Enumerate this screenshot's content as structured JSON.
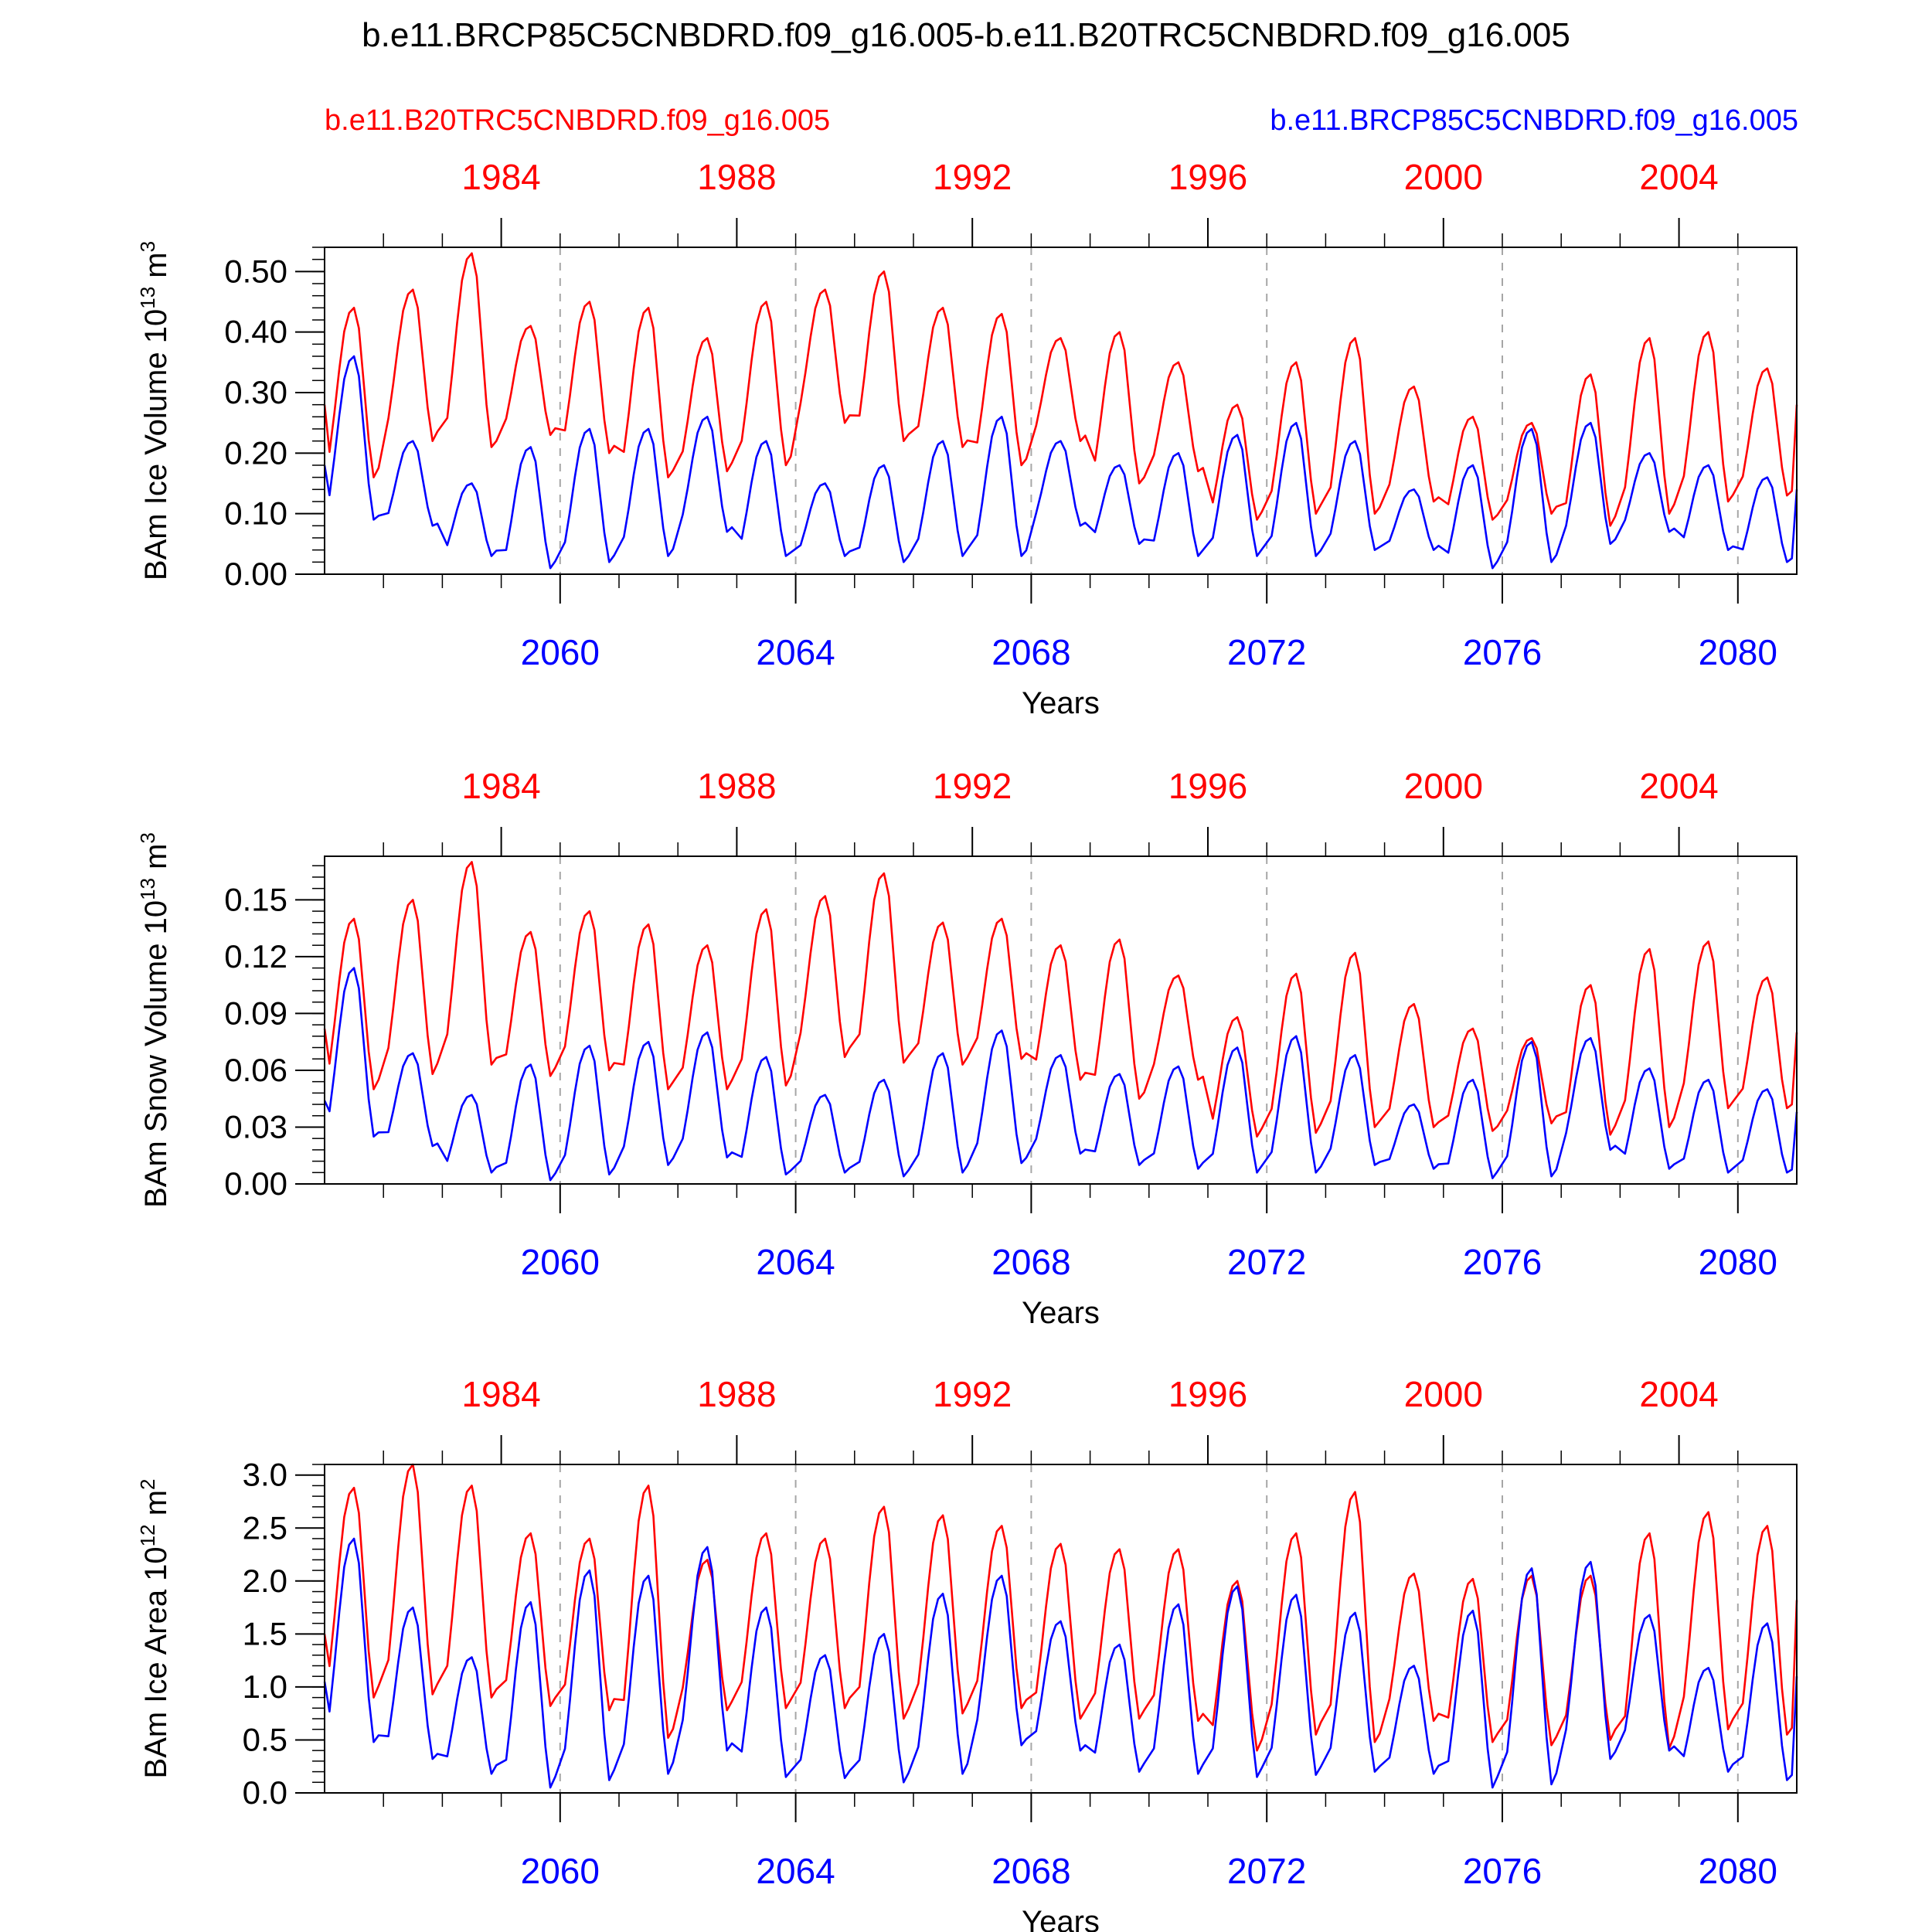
{
  "title": "b.e11.BRCP85C5CNBDRD.f09_g16.005-b.e11.B20TRC5CNBDRD.f09_g16.005",
  "legend": {
    "red_label": "b.e11.B20TRC5CNBDRD.f09_g16.005",
    "blue_label": "b.e11.BRCP85C5CNBDRD.f09_g16.005"
  },
  "colors": {
    "red": "#ff0000",
    "blue": "#0000ff",
    "grid": "#a6a6a6",
    "axis": "#000000"
  },
  "chart_data": [
    {
      "type": "line",
      "ylabel": "BAm Ice Volume 10",
      "ylabel_exp": "13",
      "ylabel_unit": " m",
      "ylabel_unit_exp": "3",
      "xlabel": "Years",
      "ylim": [
        0,
        0.54
      ],
      "y_ticks": [
        0.0,
        0.1,
        0.2,
        0.3,
        0.4,
        0.5
      ],
      "y_tick_labels": [
        "0.00",
        "0.10",
        "0.20",
        "0.30",
        "0.40",
        "0.50"
      ],
      "y_minor_step": 0.02,
      "x_bottom_range": [
        2056,
        2081
      ],
      "x_bottom_ticks": [
        2060,
        2064,
        2068,
        2072,
        2076,
        2080
      ],
      "x_top_range": [
        1981,
        2006
      ],
      "x_top_ticks": [
        1984,
        1988,
        1992,
        1996,
        2000,
        2004
      ],
      "series": [
        {
          "name": "b.e11.B20TRC5CNBDRD.f09_g16.005",
          "color": "red",
          "peaks": [
            0.44,
            0.47,
            0.53,
            0.41,
            0.45,
            0.44,
            0.39,
            0.45,
            0.47,
            0.5,
            0.44,
            0.43,
            0.39,
            0.4,
            0.35,
            0.28,
            0.35,
            0.39,
            0.31,
            0.26,
            0.25,
            0.33,
            0.39,
            0.4,
            0.34
          ],
          "troughs": [
            0.16,
            0.22,
            0.21,
            0.23,
            0.2,
            0.16,
            0.17,
            0.18,
            0.25,
            0.22,
            0.21,
            0.18,
            0.22,
            0.15,
            0.17,
            0.09,
            0.1,
            0.1,
            0.12,
            0.09,
            0.1,
            0.08,
            0.1,
            0.12,
            0.13
          ],
          "start": 0.28,
          "end": 0.28
        },
        {
          "name": "b.e11.BRCP85C5CNBDRD.f09_g16.005",
          "color": "blue",
          "peaks": [
            0.36,
            0.22,
            0.15,
            0.21,
            0.24,
            0.24,
            0.26,
            0.22,
            0.15,
            0.18,
            0.22,
            0.26,
            0.22,
            0.18,
            0.2,
            0.23,
            0.25,
            0.22,
            0.14,
            0.18,
            0.24,
            0.25,
            0.2,
            0.18,
            0.16
          ],
          "troughs": [
            0.09,
            0.08,
            0.03,
            0.01,
            0.02,
            0.03,
            0.07,
            0.03,
            0.03,
            0.02,
            0.03,
            0.03,
            0.08,
            0.05,
            0.03,
            0.03,
            0.03,
            0.04,
            0.04,
            0.01,
            0.02,
            0.05,
            0.07,
            0.04,
            0.02
          ],
          "start": 0.18,
          "end": 0.14
        }
      ]
    },
    {
      "type": "line",
      "ylabel": "BAm Snow Volume 10",
      "ylabel_exp": "13",
      "ylabel_unit": " m",
      "ylabel_unit_exp": "3",
      "xlabel": "Years",
      "ylim": [
        0,
        0.173
      ],
      "y_ticks": [
        0.0,
        0.03,
        0.06,
        0.09,
        0.12,
        0.15
      ],
      "y_tick_labels": [
        "0.00",
        "0.03",
        "0.06",
        "0.09",
        "0.12",
        "0.15"
      ],
      "y_minor_step": 0.006,
      "x_bottom_range": [
        2056,
        2081
      ],
      "x_bottom_ticks": [
        2060,
        2064,
        2068,
        2072,
        2076,
        2080
      ],
      "x_top_range": [
        1981,
        2006
      ],
      "x_top_ticks": [
        1984,
        1988,
        1992,
        1996,
        2000,
        2004
      ],
      "series": [
        {
          "name": "b.e11.B20TRC5CNBDRD.f09_g16.005",
          "color": "red",
          "peaks": [
            0.14,
            0.15,
            0.17,
            0.133,
            0.144,
            0.137,
            0.126,
            0.145,
            0.152,
            0.164,
            0.138,
            0.14,
            0.126,
            0.129,
            0.11,
            0.088,
            0.111,
            0.122,
            0.095,
            0.082,
            0.077,
            0.105,
            0.124,
            0.128,
            0.109
          ],
          "troughs": [
            0.05,
            0.058,
            0.063,
            0.057,
            0.06,
            0.05,
            0.05,
            0.052,
            0.067,
            0.064,
            0.063,
            0.066,
            0.055,
            0.045,
            0.055,
            0.025,
            0.027,
            0.03,
            0.03,
            0.028,
            0.032,
            0.026,
            0.03,
            0.04,
            0.04
          ],
          "start": 0.082,
          "end": 0.08
        },
        {
          "name": "b.e11.BRCP85C5CNBDRD.f09_g16.005",
          "color": "blue",
          "peaks": [
            0.114,
            0.069,
            0.047,
            0.063,
            0.073,
            0.075,
            0.08,
            0.067,
            0.047,
            0.055,
            0.069,
            0.081,
            0.068,
            0.058,
            0.062,
            0.072,
            0.078,
            0.068,
            0.042,
            0.055,
            0.075,
            0.077,
            0.061,
            0.055,
            0.05
          ],
          "troughs": [
            0.025,
            0.02,
            0.006,
            0.002,
            0.005,
            0.01,
            0.014,
            0.005,
            0.006,
            0.004,
            0.006,
            0.011,
            0.016,
            0.01,
            0.008,
            0.006,
            0.006,
            0.01,
            0.008,
            0.003,
            0.004,
            0.018,
            0.008,
            0.006,
            0.006
          ],
          "start": 0.044,
          "end": 0.038
        }
      ]
    },
    {
      "type": "line",
      "ylabel": "BAm Ice Area 10",
      "ylabel_exp": "12",
      "ylabel_unit": " m",
      "ylabel_unit_exp": "2",
      "xlabel": "Years",
      "ylim": [
        0,
        3.1
      ],
      "y_ticks": [
        0.0,
        0.5,
        1.0,
        1.5,
        2.0,
        2.5,
        3.0
      ],
      "y_tick_labels": [
        "0.0",
        "0.5",
        "1.0",
        "1.5",
        "2.0",
        "2.5",
        "3.0"
      ],
      "y_minor_step": 0.1,
      "x_bottom_range": [
        2056,
        2081
      ],
      "x_bottom_ticks": [
        2060,
        2064,
        2068,
        2072,
        2076,
        2080
      ],
      "x_top_range": [
        1981,
        2006
      ],
      "x_top_ticks": [
        1984,
        1988,
        1992,
        1996,
        2000,
        2004
      ],
      "series": [
        {
          "name": "b.e11.B20TRC5CNBDRD.f09_g16.005",
          "color": "red",
          "peaks": [
            2.88,
            3.1,
            2.9,
            2.45,
            2.4,
            2.9,
            2.2,
            2.45,
            2.4,
            2.7,
            2.62,
            2.52,
            2.35,
            2.3,
            2.3,
            2.0,
            2.45,
            2.84,
            2.07,
            2.02,
            2.05,
            2.05,
            2.45,
            2.65,
            2.52
          ],
          "troughs": [
            0.9,
            0.93,
            0.9,
            0.82,
            0.78,
            0.52,
            0.78,
            0.8,
            0.8,
            0.7,
            0.75,
            0.8,
            0.7,
            0.7,
            0.68,
            0.4,
            0.55,
            0.48,
            0.68,
            0.48,
            0.45,
            0.5,
            0.42,
            0.6,
            0.55
          ],
          "start": 1.5,
          "end": 1.82
        },
        {
          "name": "b.e11.BRCP85C5CNBDRD.f09_g16.005",
          "color": "blue",
          "peaks": [
            2.4,
            1.75,
            1.28,
            1.8,
            2.1,
            2.05,
            2.32,
            1.75,
            1.3,
            1.5,
            1.88,
            2.05,
            1.62,
            1.4,
            1.78,
            1.95,
            1.87,
            1.7,
            1.2,
            1.72,
            2.12,
            2.18,
            1.68,
            1.18,
            1.6
          ],
          "troughs": [
            0.48,
            0.32,
            0.18,
            0.05,
            0.12,
            0.18,
            0.4,
            0.15,
            0.14,
            0.1,
            0.18,
            0.45,
            0.4,
            0.2,
            0.18,
            0.15,
            0.17,
            0.2,
            0.18,
            0.05,
            0.08,
            0.32,
            0.4,
            0.2,
            0.12
          ],
          "start": 1.05,
          "end": 1.1
        }
      ]
    }
  ]
}
